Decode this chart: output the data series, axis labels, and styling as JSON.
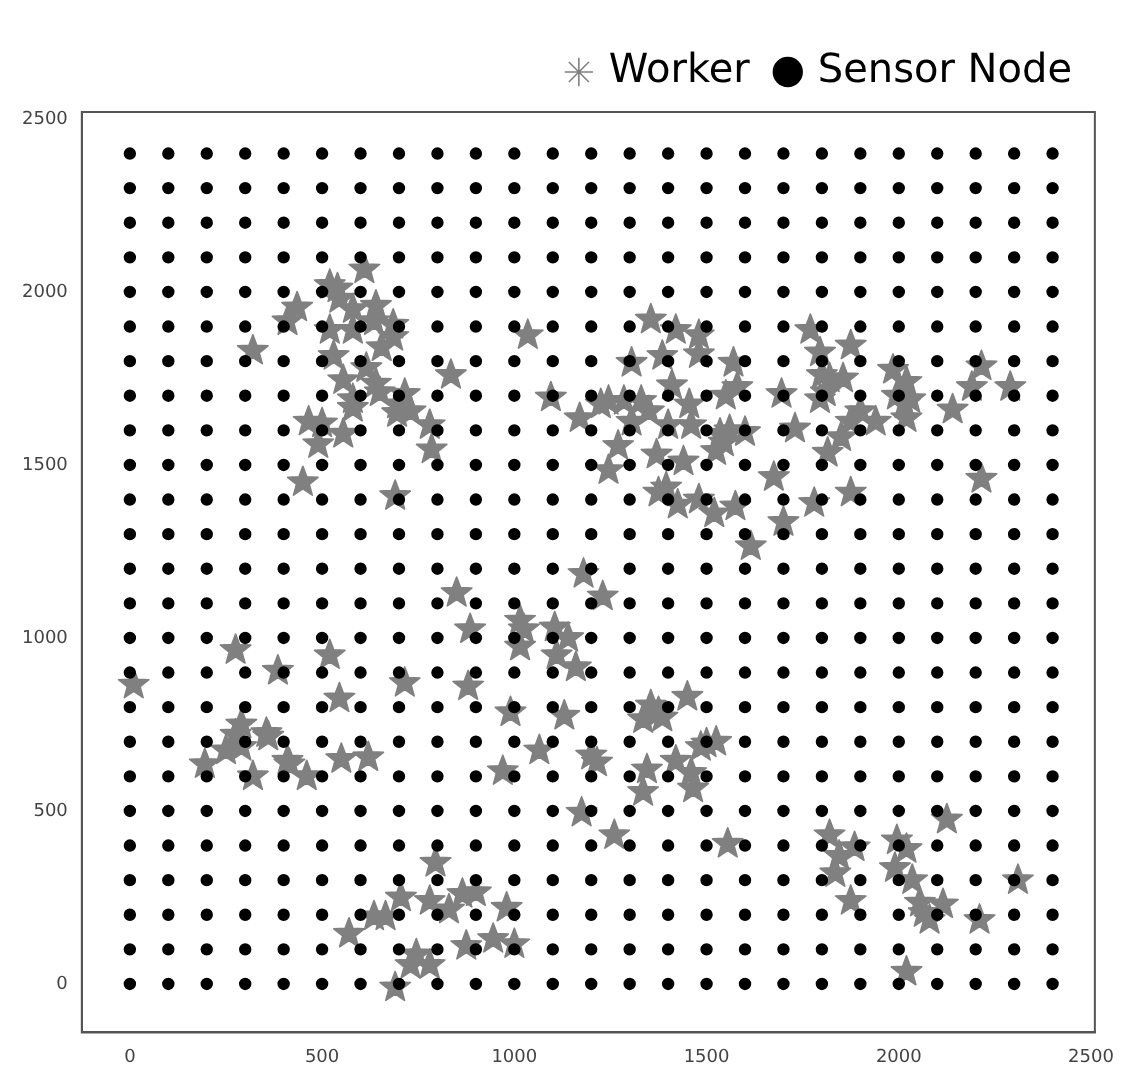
{
  "chart_data": {
    "type": "scatter",
    "xlim": [
      -125,
      2510
    ],
    "ylim": [
      -140,
      2520
    ],
    "xticks": [
      0,
      500,
      1000,
      1500,
      2000,
      2500
    ],
    "yticks": [
      0,
      500,
      1000,
      1500,
      2000,
      2500
    ],
    "grid": false,
    "legend": "top right",
    "series": [
      {
        "name": "Worker",
        "type": "scatter",
        "marker": "star",
        "color": "#808080",
        "x": [
          610,
          520,
          540,
          545,
          580,
          640,
          435,
          410,
          520,
          580,
          635,
          685,
          685,
          655,
          1035,
          320,
          530,
          615,
          835,
          555,
          640,
          650,
          715,
          580,
          580,
          695,
          695,
          730,
          1095,
          1170,
          465,
          500,
          555,
          780,
          490,
          785,
          450,
          690,
          1355,
          1420,
          1480,
          1305,
          1385,
          1480,
          1570,
          1770,
          1795,
          1875,
          1985,
          2215,
          1800,
          1820,
          1855,
          2020,
          1410,
          1580,
          2190,
          2290,
          1810,
          1795,
          1995,
          2030,
          2015,
          1225,
          1245,
          1285,
          1330,
          1350,
          1550,
          1455,
          1695,
          2140,
          1305,
          1400,
          1460,
          1535,
          1560,
          1600,
          1730,
          1900,
          1875,
          1940,
          2020,
          1850,
          1545,
          1525,
          1270,
          1245,
          1370,
          1440,
          1815,
          1675,
          2215,
          1395,
          1375,
          1425,
          1480,
          1520,
          1575,
          1780,
          1875,
          1700,
          1615,
          850,
          1015,
          1025,
          1015,
          885,
          1105,
          1140,
          1110,
          1160,
          275,
          520,
          385,
          10,
          715,
          880,
          545,
          990,
          1130,
          290,
          275,
          355,
          360,
          250,
          290,
          195,
          410,
          415,
          320,
          460,
          550,
          620,
          1065,
          970,
          1175,
          795,
          705,
          780,
          865,
          900,
          830,
          980,
          635,
          665,
          570,
          875,
          945,
          1000,
          745,
          730,
          780,
          690,
          1180,
          1230,
          1355,
          1335,
          1385,
          1375,
          1450,
          1485,
          1525,
          1500,
          1200,
          1215,
          1345,
          1420,
          1460,
          1335,
          1465,
          1260,
          1555,
          1820,
          1845,
          1885,
          1995,
          2020,
          2125,
          1835,
          1990,
          2035,
          2310,
          1875,
          2055,
          2115,
          2065,
          2080,
          2210,
          2020
        ],
        "values": [
          2065,
          2020,
          2010,
          1980,
          1950,
          1960,
          1955,
          1915,
          1890,
          1890,
          1915,
          1905,
          1870,
          1840,
          1875,
          1830,
          1815,
          1780,
          1760,
          1745,
          1735,
          1710,
          1705,
          1690,
          1665,
          1675,
          1650,
          1655,
          1695,
          1635,
          1625,
          1620,
          1590,
          1615,
          1560,
          1545,
          1450,
          1410,
          1920,
          1890,
          1875,
          1795,
          1815,
          1820,
          1795,
          1890,
          1825,
          1845,
          1775,
          1785,
          1760,
          1750,
          1750,
          1740,
          1730,
          1725,
          1725,
          1725,
          1710,
          1690,
          1700,
          1690,
          1675,
          1675,
          1685,
          1685,
          1685,
          1655,
          1700,
          1675,
          1705,
          1660,
          1625,
          1615,
          1615,
          1590,
          1600,
          1595,
          1605,
          1655,
          1625,
          1625,
          1635,
          1580,
          1565,
          1540,
          1555,
          1485,
          1530,
          1510,
          1535,
          1465,
          1460,
          1435,
          1420,
          1385,
          1400,
          1360,
          1380,
          1390,
          1420,
          1335,
          1265,
          1130,
          1050,
          1025,
          975,
          1025,
          1030,
          1000,
          950,
          915,
          965,
          950,
          905,
          865,
          870,
          860,
          825,
          785,
          775,
          750,
          720,
          725,
          715,
          675,
          685,
          635,
          645,
          635,
          600,
          600,
          650,
          655,
          675,
          615,
          495,
          350,
          250,
          240,
          260,
          265,
          215,
          220,
          195,
          195,
          145,
          110,
          130,
          115,
          85,
          55,
          55,
          -10,
          1185,
          1120,
          805,
          765,
          770,
          785,
          830,
          685,
          700,
          695,
          660,
          640,
          620,
          645,
          610,
          555,
          565,
          430,
          405,
          430,
          370,
          395,
          415,
          390,
          475,
          320,
          335,
          300,
          300,
          240,
          235,
          230,
          205,
          185,
          185,
          35
        ]
      },
      {
        "name": "Sensor Node",
        "type": "scatter",
        "marker": "circle",
        "color": "#000000",
        "x": [
          0,
          100,
          200,
          300,
          400,
          500,
          600,
          700,
          800,
          900,
          1000,
          1100,
          1200,
          1300,
          1400,
          1500,
          1600,
          1700,
          1800,
          1900,
          2000,
          2100,
          2200,
          2300,
          2400,
          0,
          100,
          200,
          300,
          400,
          500,
          600,
          700,
          800,
          900,
          1000,
          1100,
          1200,
          1300,
          1400,
          1500,
          1600,
          1700,
          1800,
          1900,
          2000,
          2100,
          2200,
          2300,
          2400,
          0,
          100,
          200,
          300,
          400,
          500,
          600,
          700,
          800,
          900,
          1000,
          1100,
          1200,
          1300,
          1400,
          1500,
          1600,
          1700,
          1800,
          1900,
          2000,
          2100,
          2200,
          2300,
          2400,
          0,
          100,
          200,
          300,
          400,
          500,
          600,
          700,
          800,
          900,
          1000,
          1100,
          1200,
          1300,
          1400,
          1500,
          1600,
          1700,
          1800,
          1900,
          2000,
          2100,
          2200,
          2300,
          2400,
          0,
          100,
          200,
          300,
          400,
          500,
          600,
          700,
          800,
          900,
          1000,
          1100,
          1200,
          1300,
          1400,
          1500,
          1600,
          1700,
          1800,
          1900,
          2000,
          2100,
          2200,
          2300,
          2400,
          0,
          100,
          200,
          300,
          400,
          500,
          600,
          700,
          800,
          900,
          1000,
          1100,
          1200,
          1300,
          1400,
          1500,
          1600,
          1700,
          1800,
          1900,
          2000,
          2100,
          2200,
          2300,
          2400,
          0,
          100,
          200,
          300,
          400,
          500,
          600,
          700,
          800,
          900,
          1000,
          1100,
          1200,
          1300,
          1400,
          1500,
          1600,
          1700,
          1800,
          1900,
          2000,
          2100,
          2200,
          2300,
          2400,
          0,
          100,
          200,
          300,
          400,
          500,
          600,
          700,
          800,
          900,
          1000,
          1100,
          1200,
          1300,
          1400,
          1500,
          1600,
          1700,
          1800,
          1900,
          2000,
          2100,
          2200,
          2300,
          2400,
          0,
          100,
          200,
          300,
          400,
          500,
          600,
          700,
          800,
          900,
          1000,
          1100,
          1200,
          1300,
          1400,
          1500,
          1600,
          1700,
          1800,
          1900,
          2000,
          2100,
          2200,
          2300,
          2400,
          0,
          100,
          200,
          300,
          400,
          500,
          600,
          700,
          800,
          900,
          1000,
          1100,
          1200,
          1300,
          1400,
          1500,
          1600,
          1700,
          1800,
          1900,
          2000,
          2100,
          2200,
          2300,
          2400,
          0,
          100,
          200,
          300,
          400,
          500,
          600,
          700,
          800,
          900,
          1000,
          1100,
          1200,
          1300,
          1400,
          1500,
          1600,
          1700,
          1800,
          1900,
          2000,
          2100,
          2200,
          2300,
          2400,
          0,
          100,
          200,
          300,
          400,
          500,
          600,
          700,
          800,
          900,
          1000,
          1100,
          1200,
          1300,
          1400,
          1500,
          1600,
          1700,
          1800,
          1900,
          2000,
          2100,
          2200,
          2300,
          2400,
          0,
          100,
          200,
          300,
          400,
          500,
          600,
          700,
          800,
          900,
          1000,
          1100,
          1200,
          1300,
          1400,
          1500,
          1600,
          1700,
          1800,
          1900,
          2000,
          2100,
          2200,
          2300,
          2400,
          0,
          100,
          200,
          300,
          400,
          500,
          600,
          700,
          800,
          900,
          1000,
          1100,
          1200,
          1300,
          1400,
          1500,
          1600,
          1700,
          1800,
          1900,
          2000,
          2100,
          2200,
          2300,
          2400,
          0,
          100,
          200,
          300,
          400,
          500,
          600,
          700,
          800,
          900,
          1000,
          1100,
          1200,
          1300,
          1400,
          1500,
          1600,
          1700,
          1800,
          1900,
          2000,
          2100,
          2200,
          2300,
          2400,
          0,
          100,
          200,
          300,
          400,
          500,
          600,
          700,
          800,
          900,
          1000,
          1100,
          1200,
          1300,
          1400,
          1500,
          1600,
          1700,
          1800,
          1900,
          2000,
          2100,
          2200,
          2300,
          2400,
          0,
          100,
          200,
          300,
          400,
          500,
          600,
          700,
          800,
          900,
          1000,
          1100,
          1200,
          1300,
          1400,
          1500,
          1600,
          1700,
          1800,
          1900,
          2000,
          2100,
          2200,
          2300,
          2400,
          0,
          100,
          200,
          300,
          400,
          500,
          600,
          700,
          800,
          900,
          1000,
          1100,
          1200,
          1300,
          1400,
          1500,
          1600,
          1700,
          1800,
          1900,
          2000,
          2100,
          2200,
          2300,
          2400,
          0,
          100,
          200,
          300,
          400,
          500,
          600,
          700,
          800,
          900,
          1000,
          1100,
          1200,
          1300,
          1400,
          1500,
          1600,
          1700,
          1800,
          1900,
          2000,
          2100,
          2200,
          2300,
          2400,
          0,
          100,
          200,
          300,
          400,
          500,
          600,
          700,
          800,
          900,
          1000,
          1100,
          1200,
          1300,
          1400,
          1500,
          1600,
          1700,
          1800,
          1900,
          2000,
          2100,
          2200,
          2300,
          2400,
          0,
          100,
          200,
          300,
          400,
          500,
          600,
          700,
          800,
          900,
          1000,
          1100,
          1200,
          1300,
          1400,
          1500,
          1600,
          1700,
          1800,
          1900,
          2000,
          2100,
          2200,
          2300,
          2400,
          0,
          100,
          200,
          300,
          400,
          500,
          600,
          700,
          800,
          900,
          1000,
          1100,
          1200,
          1300,
          1400,
          1500,
          1600,
          1700,
          1800,
          1900,
          2000,
          2100,
          2200,
          2300,
          2400,
          0,
          100,
          200,
          300,
          400,
          500,
          600,
          700,
          800,
          900,
          1000,
          1100,
          1200,
          1300,
          1400,
          1500,
          1600,
          1700,
          1800,
          1900,
          2000,
          2100,
          2200,
          2300,
          2400,
          0,
          100,
          200,
          300,
          400,
          500,
          600,
          700,
          800,
          900,
          1000,
          1100,
          1200,
          1300,
          1400,
          1500,
          1600,
          1700,
          1800,
          1900,
          2000,
          2100,
          2200,
          2300,
          2400,
          0,
          100,
          200,
          300,
          400,
          500,
          600,
          700,
          800,
          900,
          1000,
          1100,
          1200,
          1300,
          1400,
          1500,
          1600,
          1700,
          1800,
          1900,
          2000,
          2100,
          2200,
          2300,
          2400
        ],
        "values": [
          0,
          0,
          0,
          0,
          0,
          0,
          0,
          0,
          0,
          0,
          0,
          0,
          0,
          0,
          0,
          0,
          0,
          0,
          0,
          0,
          0,
          0,
          0,
          0,
          0,
          100,
          100,
          100,
          100,
          100,
          100,
          100,
          100,
          100,
          100,
          100,
          100,
          100,
          100,
          100,
          100,
          100,
          100,
          100,
          100,
          100,
          100,
          100,
          100,
          100,
          200,
          200,
          200,
          200,
          200,
          200,
          200,
          200,
          200,
          200,
          200,
          200,
          200,
          200,
          200,
          200,
          200,
          200,
          200,
          200,
          200,
          200,
          200,
          200,
          200,
          300,
          300,
          300,
          300,
          300,
          300,
          300,
          300,
          300,
          300,
          300,
          300,
          300,
          300,
          300,
          300,
          300,
          300,
          300,
          300,
          300,
          300,
          300,
          300,
          300,
          400,
          400,
          400,
          400,
          400,
          400,
          400,
          400,
          400,
          400,
          400,
          400,
          400,
          400,
          400,
          400,
          400,
          400,
          400,
          400,
          400,
          400,
          400,
          400,
          400,
          500,
          500,
          500,
          500,
          500,
          500,
          500,
          500,
          500,
          500,
          500,
          500,
          500,
          500,
          500,
          500,
          500,
          500,
          500,
          500,
          500,
          500,
          500,
          500,
          500,
          600,
          600,
          600,
          600,
          600,
          600,
          600,
          600,
          600,
          600,
          600,
          600,
          600,
          600,
          600,
          600,
          600,
          600,
          600,
          600,
          600,
          600,
          600,
          600,
          600,
          700,
          700,
          700,
          700,
          700,
          700,
          700,
          700,
          700,
          700,
          700,
          700,
          700,
          700,
          700,
          700,
          700,
          700,
          700,
          700,
          700,
          700,
          700,
          700,
          700,
          800,
          800,
          800,
          800,
          800,
          800,
          800,
          800,
          800,
          800,
          800,
          800,
          800,
          800,
          800,
          800,
          800,
          800,
          800,
          800,
          800,
          800,
          800,
          800,
          800,
          900,
          900,
          900,
          900,
          900,
          900,
          900,
          900,
          900,
          900,
          900,
          900,
          900,
          900,
          900,
          900,
          900,
          900,
          900,
          900,
          900,
          900,
          900,
          900,
          900,
          1000,
          1000,
          1000,
          1000,
          1000,
          1000,
          1000,
          1000,
          1000,
          1000,
          1000,
          1000,
          1000,
          1000,
          1000,
          1000,
          1000,
          1000,
          1000,
          1000,
          1000,
          1000,
          1000,
          1000,
          1000,
          1100,
          1100,
          1100,
          1100,
          1100,
          1100,
          1100,
          1100,
          1100,
          1100,
          1100,
          1100,
          1100,
          1100,
          1100,
          1100,
          1100,
          1100,
          1100,
          1100,
          1100,
          1100,
          1100,
          1100,
          1100,
          1200,
          1200,
          1200,
          1200,
          1200,
          1200,
          1200,
          1200,
          1200,
          1200,
          1200,
          1200,
          1200,
          1200,
          1200,
          1200,
          1200,
          1200,
          1200,
          1200,
          1200,
          1200,
          1200,
          1200,
          1200,
          1300,
          1300,
          1300,
          1300,
          1300,
          1300,
          1300,
          1300,
          1300,
          1300,
          1300,
          1300,
          1300,
          1300,
          1300,
          1300,
          1300,
          1300,
          1300,
          1300,
          1300,
          1300,
          1300,
          1300,
          1300,
          1400,
          1400,
          1400,
          1400,
          1400,
          1400,
          1400,
          1400,
          1400,
          1400,
          1400,
          1400,
          1400,
          1400,
          1400,
          1400,
          1400,
          1400,
          1400,
          1400,
          1400,
          1400,
          1400,
          1400,
          1400,
          1500,
          1500,
          1500,
          1500,
          1500,
          1500,
          1500,
          1500,
          1500,
          1500,
          1500,
          1500,
          1500,
          1500,
          1500,
          1500,
          1500,
          1500,
          1500,
          1500,
          1500,
          1500,
          1500,
          1500,
          1500,
          1600,
          1600,
          1600,
          1600,
          1600,
          1600,
          1600,
          1600,
          1600,
          1600,
          1600,
          1600,
          1600,
          1600,
          1600,
          1600,
          1600,
          1600,
          1600,
          1600,
          1600,
          1600,
          1600,
          1600,
          1600,
          1700,
          1700,
          1700,
          1700,
          1700,
          1700,
          1700,
          1700,
          1700,
          1700,
          1700,
          1700,
          1700,
          1700,
          1700,
          1700,
          1700,
          1700,
          1700,
          1700,
          1700,
          1700,
          1700,
          1700,
          1700,
          1800,
          1800,
          1800,
          1800,
          1800,
          1800,
          1800,
          1800,
          1800,
          1800,
          1800,
          1800,
          1800,
          1800,
          1800,
          1800,
          1800,
          1800,
          1800,
          1800,
          1800,
          1800,
          1800,
          1800,
          1800,
          1900,
          1900,
          1900,
          1900,
          1900,
          1900,
          1900,
          1900,
          1900,
          1900,
          1900,
          1900,
          1900,
          1900,
          1900,
          1900,
          1900,
          1900,
          1900,
          1900,
          1900,
          1900,
          1900,
          1900,
          1900,
          2000,
          2000,
          2000,
          2000,
          2000,
          2000,
          2000,
          2000,
          2000,
          2000,
          2000,
          2000,
          2000,
          2000,
          2000,
          2000,
          2000,
          2000,
          2000,
          2000,
          2000,
          2000,
          2000,
          2000,
          2000,
          2100,
          2100,
          2100,
          2100,
          2100,
          2100,
          2100,
          2100,
          2100,
          2100,
          2100,
          2100,
          2100,
          2100,
          2100,
          2100,
          2100,
          2100,
          2100,
          2100,
          2100,
          2100,
          2100,
          2100,
          2100,
          2200,
          2200,
          2200,
          2200,
          2200,
          2200,
          2200,
          2200,
          2200,
          2200,
          2200,
          2200,
          2200,
          2200,
          2200,
          2200,
          2200,
          2200,
          2200,
          2200,
          2200,
          2200,
          2200,
          2200,
          2200,
          2300,
          2300,
          2300,
          2300,
          2300,
          2300,
          2300,
          2300,
          2300,
          2300,
          2300,
          2300,
          2300,
          2300,
          2300,
          2300,
          2300,
          2300,
          2300,
          2300,
          2300,
          2300,
          2300,
          2300,
          2300,
          2400,
          2400,
          2400,
          2400,
          2400,
          2400,
          2400,
          2400,
          2400,
          2400,
          2400,
          2400,
          2400,
          2400,
          2400,
          2400,
          2400,
          2400,
          2400,
          2400,
          2400,
          2400,
          2400,
          2400,
          2400
        ]
      }
    ]
  }
}
